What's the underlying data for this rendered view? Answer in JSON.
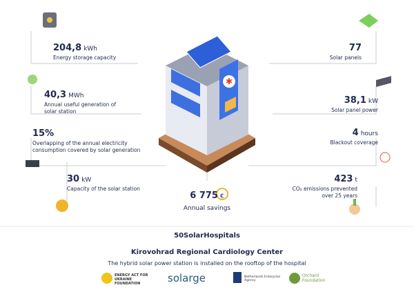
{
  "left_stats": [
    {
      "value": "204,8",
      "unit": "kWh",
      "label": "Energy storage capacity"
    },
    {
      "value": "40,3",
      "unit": "MWh",
      "label": "Annual useful generation of solar station"
    },
    {
      "value": "15%",
      "label": "Overlapping of the annual electricity consumption covered by solar generation"
    },
    {
      "value": "30",
      "unit": "kW",
      "label": "Capacity of the solar station"
    }
  ],
  "right_stats": [
    {
      "value": "77",
      "label": "Solar panels"
    },
    {
      "value": "38,1",
      "unit": "kW",
      "label": "Solar panel power"
    },
    {
      "value": "4",
      "unit": "hours",
      "label": "Blackout coverage"
    },
    {
      "value": "423",
      "unit": "t",
      "label": "CO₂ emissions prevented over 25 years"
    }
  ],
  "savings": {
    "value": "6 775",
    "unit": "€",
    "label": "Annual savings"
  },
  "footer": {
    "brand": "50SolarHospitals",
    "title": "Kirovohrad Regional Cardiology Center",
    "subtitle": "The hybrid solar power station is installed on the rooftop of the hospital",
    "logos": [
      "ENERGY ACT FOR UKRAINE FOUNDATION",
      "solarge",
      "Netherlands Enterprise Agency",
      "Orchard Foundation"
    ]
  }
}
